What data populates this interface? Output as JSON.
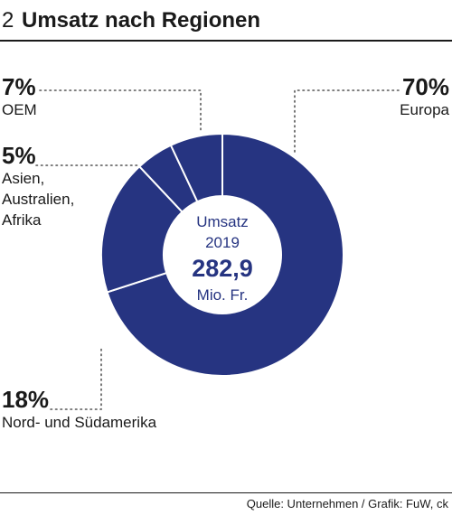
{
  "header": {
    "number": "2",
    "title": "Umsatz nach Regionen"
  },
  "chart_data": {
    "type": "pie",
    "donut": true,
    "categories": [
      "Europa",
      "Nord- und Südamerika",
      "Asien, Australien, Afrika",
      "OEM"
    ],
    "values": [
      70,
      18,
      5,
      7
    ],
    "value_labels": [
      "70%",
      "18%",
      "5%",
      "7%"
    ],
    "center": {
      "line1": "Umsatz",
      "line2": "2019",
      "value": "282,9",
      "unit": "Mio. Fr."
    },
    "colors": {
      "slice": "#263481",
      "separator": "#ffffff",
      "leader": "#555555"
    }
  },
  "labels": {
    "europa": {
      "pct": "70%",
      "name": "Europa"
    },
    "oem": {
      "pct": "7%",
      "name": "OEM"
    },
    "asien": {
      "pct": "5%",
      "name_lines": [
        "Asien,",
        "Australien,",
        "Afrika"
      ]
    },
    "amerika": {
      "pct": "18%",
      "name": "Nord- und Südamerika"
    }
  },
  "footer": {
    "source": "Quelle: Unternehmen / Grafik: FuW, ck"
  }
}
